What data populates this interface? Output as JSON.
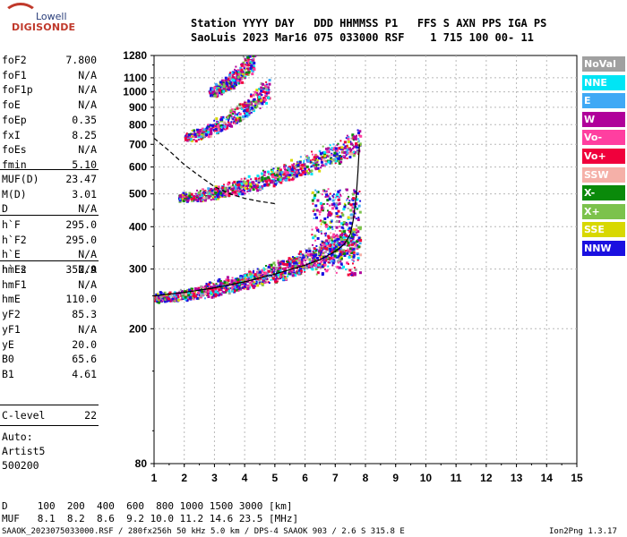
{
  "logo": {
    "line1": "Lowell",
    "line2": "DIGISONDE"
  },
  "header": {
    "line1": "Station YYYY DAY   DDD HHMMSS P1   FFS S AXN PPS IGA PS",
    "line2": "SaoLuis 2023 Mar16 075 033000 RSF    1 715 100 00- 11"
  },
  "params_top": [
    {
      "name": "foF2",
      "value": "7.800"
    },
    {
      "name": "foF1",
      "value": "N/A"
    },
    {
      "name": "foF1p",
      "value": "N/A"
    },
    {
      "name": "foE",
      "value": "N/A"
    },
    {
      "name": "foEp",
      "value": "0.35"
    },
    {
      "name": "fxI",
      "value": "8.25"
    },
    {
      "name": "foEs",
      "value": "N/A"
    },
    {
      "name": "fmin",
      "value": "5.10"
    }
  ],
  "params_muf": [
    {
      "name": "MUF(D)",
      "value": "23.47"
    },
    {
      "name": "M(D)",
      "value": "3.01"
    },
    {
      "name": "D",
      "value": "N/A"
    }
  ],
  "params_h": [
    {
      "name": "h`F",
      "value": "295.0"
    },
    {
      "name": "h`F2",
      "value": "295.0"
    },
    {
      "name": "h`E",
      "value": "N/A"
    },
    {
      "name": "h`Es",
      "value": "N/A"
    }
  ],
  "params_hm": [
    {
      "name": "hmF2",
      "value": "352.9"
    },
    {
      "name": "hmF1",
      "value": "N/A"
    },
    {
      "name": "hmE",
      "value": "110.0"
    },
    {
      "name": "yF2",
      "value": "85.3"
    },
    {
      "name": "yF1",
      "value": "N/A"
    },
    {
      "name": "yE",
      "value": "20.0"
    },
    {
      "name": "B0",
      "value": "65.6"
    },
    {
      "name": "B1",
      "value": "4.61"
    }
  ],
  "clevel": {
    "name": "C-level",
    "value": "22"
  },
  "auto": {
    "line1": "Auto:",
    "line2": "Artist5",
    "line3": "500200"
  },
  "legend": [
    {
      "label": "NoVal",
      "bg": "#a0a0a0",
      "fg": "#ffffff"
    },
    {
      "label": "NNE",
      "bg": "#00e5f5",
      "fg": "#ffffff"
    },
    {
      "label": "E",
      "bg": "#3fa9f5",
      "fg": "#ffffff"
    },
    {
      "label": "W",
      "bg": "#b0009a",
      "fg": "#ffffff"
    },
    {
      "label": "Vo-",
      "bg": "#ff3fa0",
      "fg": "#ffffff"
    },
    {
      "label": "Vo+",
      "bg": "#f0003c",
      "fg": "#ffffff"
    },
    {
      "label": "SSW",
      "bg": "#f5b0a8",
      "fg": "#ffffff"
    },
    {
      "label": "X-",
      "bg": "#0a8a0a",
      "fg": "#ffffff"
    },
    {
      "label": "X+",
      "bg": "#7cc24c",
      "fg": "#ffffff"
    },
    {
      "label": "SSE",
      "bg": "#d8d800",
      "fg": "#ffffff"
    },
    {
      "label": "NNW",
      "bg": "#1a10e0",
      "fg": "#ffffff"
    }
  ],
  "bottom": {
    "d_line": "D     100  200  400  600  800 1000 1500 3000 [km]",
    "muf_line": "MUF   8.1  8.2  8.6  9.2 10.0 11.2 14.6 23.5 [MHz]",
    "footer": "SAAOK_2023075033000.RSF / 280fx256h 50 kHz 5.0 km / DPS-4 SAAOK 903 / 2.6 S 315.8 E",
    "version": "Ion2Png 1.3.17"
  },
  "chart_data": {
    "type": "scatter",
    "xlabel": "",
    "ylabel": "",
    "xlim": [
      1,
      15
    ],
    "ylim": [
      80,
      1280
    ],
    "x_ticks": [
      1,
      2,
      3,
      4,
      5,
      6,
      7,
      8,
      9,
      10,
      11,
      12,
      13,
      14,
      15
    ],
    "y_ticks": [
      80,
      200,
      300,
      400,
      500,
      600,
      700,
      800,
      900,
      1000,
      1100,
      1280
    ],
    "y_scale": "log",
    "grid": true,
    "profile_curve": {
      "f": [
        1.0,
        2.0,
        3.0,
        4.0,
        5.0,
        6.0,
        6.5,
        7.0,
        7.3,
        7.5,
        7.6,
        7.7,
        7.75,
        7.8
      ],
      "h": [
        250,
        256,
        264,
        275,
        290,
        308,
        320,
        338,
        355,
        380,
        420,
        500,
        580,
        700
      ]
    },
    "dashed_curve": {
      "f": [
        1.0,
        1.5,
        2.0,
        2.5,
        3.0,
        3.5,
        4.0,
        4.5,
        5.0
      ],
      "h": [
        730,
        670,
        610,
        565,
        525,
        500,
        485,
        475,
        468
      ]
    },
    "traces": [
      {
        "name": "O-trace 1st hop",
        "f0": 1.0,
        "f1": 7.8,
        "h0": 245,
        "h1": 360
      },
      {
        "name": "2nd hop",
        "f0": 1.8,
        "f1": 7.8,
        "h0": 485,
        "h1": 700
      },
      {
        "name": "3rd hop",
        "f0": 2.0,
        "f1": 4.8,
        "h0": 730,
        "h1": 1000
      },
      {
        "name": "4th hop",
        "f0": 2.8,
        "f1": 4.3,
        "h0": 990,
        "h1": 1230
      }
    ]
  }
}
